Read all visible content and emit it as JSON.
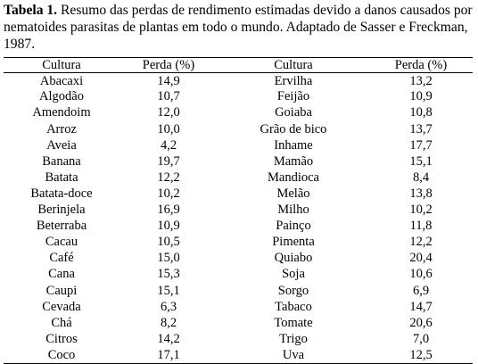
{
  "caption": {
    "label": "Tabela 1.",
    "text": "Resumo das perdas de rendimento estimadas devido a danos causados por nematoides parasitas de plantas em todo o mundo. Adaptado de Sasser e Freckman, 1987."
  },
  "table": {
    "header": [
      "Cultura",
      "Perda (%)",
      "Cultura",
      "Perda (%)"
    ],
    "rows": [
      [
        "Abacaxi",
        "14,9",
        "Ervilha",
        "13,2"
      ],
      [
        "Algodão",
        "10,7",
        "Feijão",
        "10,9"
      ],
      [
        "Amendoim",
        "12,0",
        "Goiaba",
        "10,8"
      ],
      [
        "Arroz",
        "10,0",
        "Grão de bico",
        "13,7"
      ],
      [
        "Aveia",
        "4,2",
        "Inhame",
        "17,7"
      ],
      [
        "Banana",
        "19,7",
        "Mamão",
        "15,1"
      ],
      [
        "Batata",
        "12,2",
        "Mandioca",
        "8,4"
      ],
      [
        "Batata-doce",
        "10,2",
        "Melão",
        "13,8"
      ],
      [
        "Berinjela",
        "16,9",
        "Milho",
        "10,2"
      ],
      [
        "Beterraba",
        "10,9",
        "Painço",
        "11,8"
      ],
      [
        "Cacau",
        "10,5",
        "Pimenta",
        "12,2"
      ],
      [
        "Café",
        "15,0",
        "Quiabo",
        "20,4"
      ],
      [
        "Cana",
        "15,3",
        "Soja",
        "10,6"
      ],
      [
        "Caupi",
        "15,1",
        "Sorgo",
        "6,9"
      ],
      [
        "Cevada",
        "6,3",
        "Tabaco",
        "14,7"
      ],
      [
        "Chá",
        "8,2",
        "Tomate",
        "20,6"
      ],
      [
        "Citros",
        "14,2",
        "Trigo",
        "7,0"
      ],
      [
        "Coco",
        "17,1",
        "Uva",
        "12,5"
      ]
    ]
  }
}
